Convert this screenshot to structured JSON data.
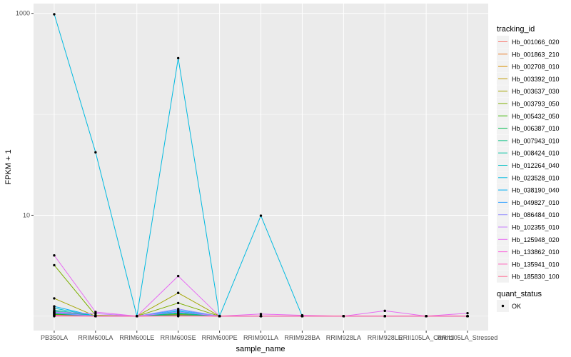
{
  "chart_data": {
    "type": "line",
    "xlabel": "sample_name",
    "ylabel": "FPKM + 1",
    "y_scale": "log10",
    "ylim": [
      0.72,
      1250
    ],
    "y_ticks": [
      10,
      1000
    ],
    "y_tick_labels": [
      "10",
      "1000"
    ],
    "grid": true,
    "legend_position": "right",
    "categories": [
      "PB350LA",
      "RRIM600LA",
      "RRIM600LE",
      "RRIM600SE",
      "RRIM600PE",
      "RRIM901LA",
      "RRIM928BA",
      "RRIM928LA",
      "RRIM928LE",
      "RRII105LA_Control",
      "RRII105LA_Stressed"
    ],
    "series": [
      {
        "name": "Hb_001066_020",
        "color": "#F8766D",
        "values": [
          1.03,
          1.0,
          1.0,
          1.02,
          1.0,
          1.0,
          1.0,
          1.0,
          1.0,
          1.0,
          1.0
        ]
      },
      {
        "name": "Hb_001863_210",
        "color": "#EA8331",
        "values": [
          1.05,
          1.0,
          1.0,
          1.03,
          1.0,
          1.0,
          1.0,
          1.0,
          1.0,
          1.0,
          1.0
        ]
      },
      {
        "name": "Hb_002708_010",
        "color": "#D89000",
        "values": [
          1.08,
          1.0,
          1.0,
          1.04,
          1.0,
          1.0,
          1.0,
          1.0,
          1.0,
          1.0,
          1.0
        ]
      },
      {
        "name": "Hb_003392_010",
        "color": "#C09B00",
        "values": [
          1.1,
          1.0,
          1.0,
          1.05,
          1.0,
          1.0,
          1.0,
          1.0,
          1.0,
          1.0,
          1.0
        ]
      },
      {
        "name": "Hb_003637_030",
        "color": "#A3A500",
        "values": [
          1.5,
          1.0,
          1.0,
          1.7,
          1.0,
          1.0,
          1.0,
          1.0,
          1.0,
          1.0,
          1.0
        ]
      },
      {
        "name": "Hb_003793_050",
        "color": "#7CAE00",
        "values": [
          3.2,
          1.02,
          1.0,
          1.35,
          1.0,
          1.0,
          1.0,
          1.0,
          1.0,
          1.0,
          1.0
        ]
      },
      {
        "name": "Hb_005432_050",
        "color": "#39B600",
        "values": [
          1.04,
          1.0,
          1.0,
          1.02,
          1.0,
          1.0,
          1.0,
          1.0,
          1.0,
          1.0,
          1.0
        ]
      },
      {
        "name": "Hb_006387_010",
        "color": "#00BB4E",
        "values": [
          1.06,
          1.0,
          1.0,
          1.03,
          1.0,
          1.0,
          1.0,
          1.0,
          1.0,
          1.0,
          1.0
        ]
      },
      {
        "name": "Hb_007943_010",
        "color": "#00BF7D",
        "values": [
          1.12,
          1.0,
          1.0,
          1.06,
          1.0,
          1.0,
          1.0,
          1.0,
          1.0,
          1.0,
          1.0
        ]
      },
      {
        "name": "Hb_008424_010",
        "color": "#00C1A3",
        "values": [
          1.15,
          1.0,
          1.0,
          1.08,
          1.0,
          1.0,
          1.0,
          1.0,
          1.0,
          1.0,
          1.0
        ]
      },
      {
        "name": "Hb_012264_040",
        "color": "#00BFC4",
        "values": [
          1.2,
          1.0,
          1.0,
          1.1,
          1.0,
          1.0,
          1.0,
          1.0,
          1.0,
          1.0,
          1.0
        ]
      },
      {
        "name": "Hb_023528_010",
        "color": "#00BAE0",
        "values": [
          980,
          42,
          1.0,
          360,
          1.0,
          9.9,
          1.0,
          1.0,
          1.0,
          1.0,
          1.0
        ]
      },
      {
        "name": "Hb_038190_040",
        "color": "#00B0F6",
        "values": [
          1.25,
          1.0,
          1.0,
          1.12,
          1.0,
          1.0,
          1.0,
          1.0,
          1.0,
          1.0,
          1.0
        ]
      },
      {
        "name": "Hb_049827_010",
        "color": "#35A2FF",
        "values": [
          1.07,
          1.0,
          1.0,
          1.15,
          1.0,
          1.0,
          1.0,
          1.0,
          1.0,
          1.0,
          1.0
        ]
      },
      {
        "name": "Hb_086484_010",
        "color": "#9590FF",
        "values": [
          1.09,
          1.0,
          1.0,
          1.18,
          1.0,
          1.0,
          1.0,
          1.0,
          1.0,
          1.0,
          1.0
        ]
      },
      {
        "name": "Hb_102355_010",
        "color": "#C77CFF",
        "values": [
          1.1,
          1.06,
          1.0,
          1.1,
          1.0,
          1.0,
          1.0,
          1.0,
          1.0,
          1.0,
          1.0
        ]
      },
      {
        "name": "Hb_125948_020",
        "color": "#E76BF3",
        "values": [
          4.0,
          1.1,
          1.0,
          2.5,
          1.0,
          1.05,
          1.02,
          1.0,
          1.13,
          1.0,
          1.07
        ]
      },
      {
        "name": "Hb_133862_010",
        "color": "#FA62DB",
        "values": [
          1.02,
          1.0,
          1.0,
          1.01,
          1.0,
          1.0,
          1.0,
          1.0,
          1.0,
          1.0,
          1.0
        ]
      },
      {
        "name": "Hb_135941_010",
        "color": "#FF62BC",
        "values": [
          1.01,
          1.0,
          1.0,
          1.01,
          1.0,
          1.0,
          1.0,
          1.0,
          1.0,
          1.0,
          1.0
        ]
      },
      {
        "name": "Hb_185830_100",
        "color": "#FF6C91",
        "values": [
          1.0,
          1.0,
          1.0,
          1.0,
          1.0,
          1.0,
          1.0,
          1.0,
          1.0,
          1.0,
          1.0
        ]
      }
    ],
    "legend_color_title": "tracking_id",
    "legend_shape_title": "quant_status",
    "legend_shape_entries": [
      "OK"
    ],
    "panel_background": "#EBEBEB",
    "grid_color": "#FFFFFF",
    "point_color": "#000000"
  }
}
